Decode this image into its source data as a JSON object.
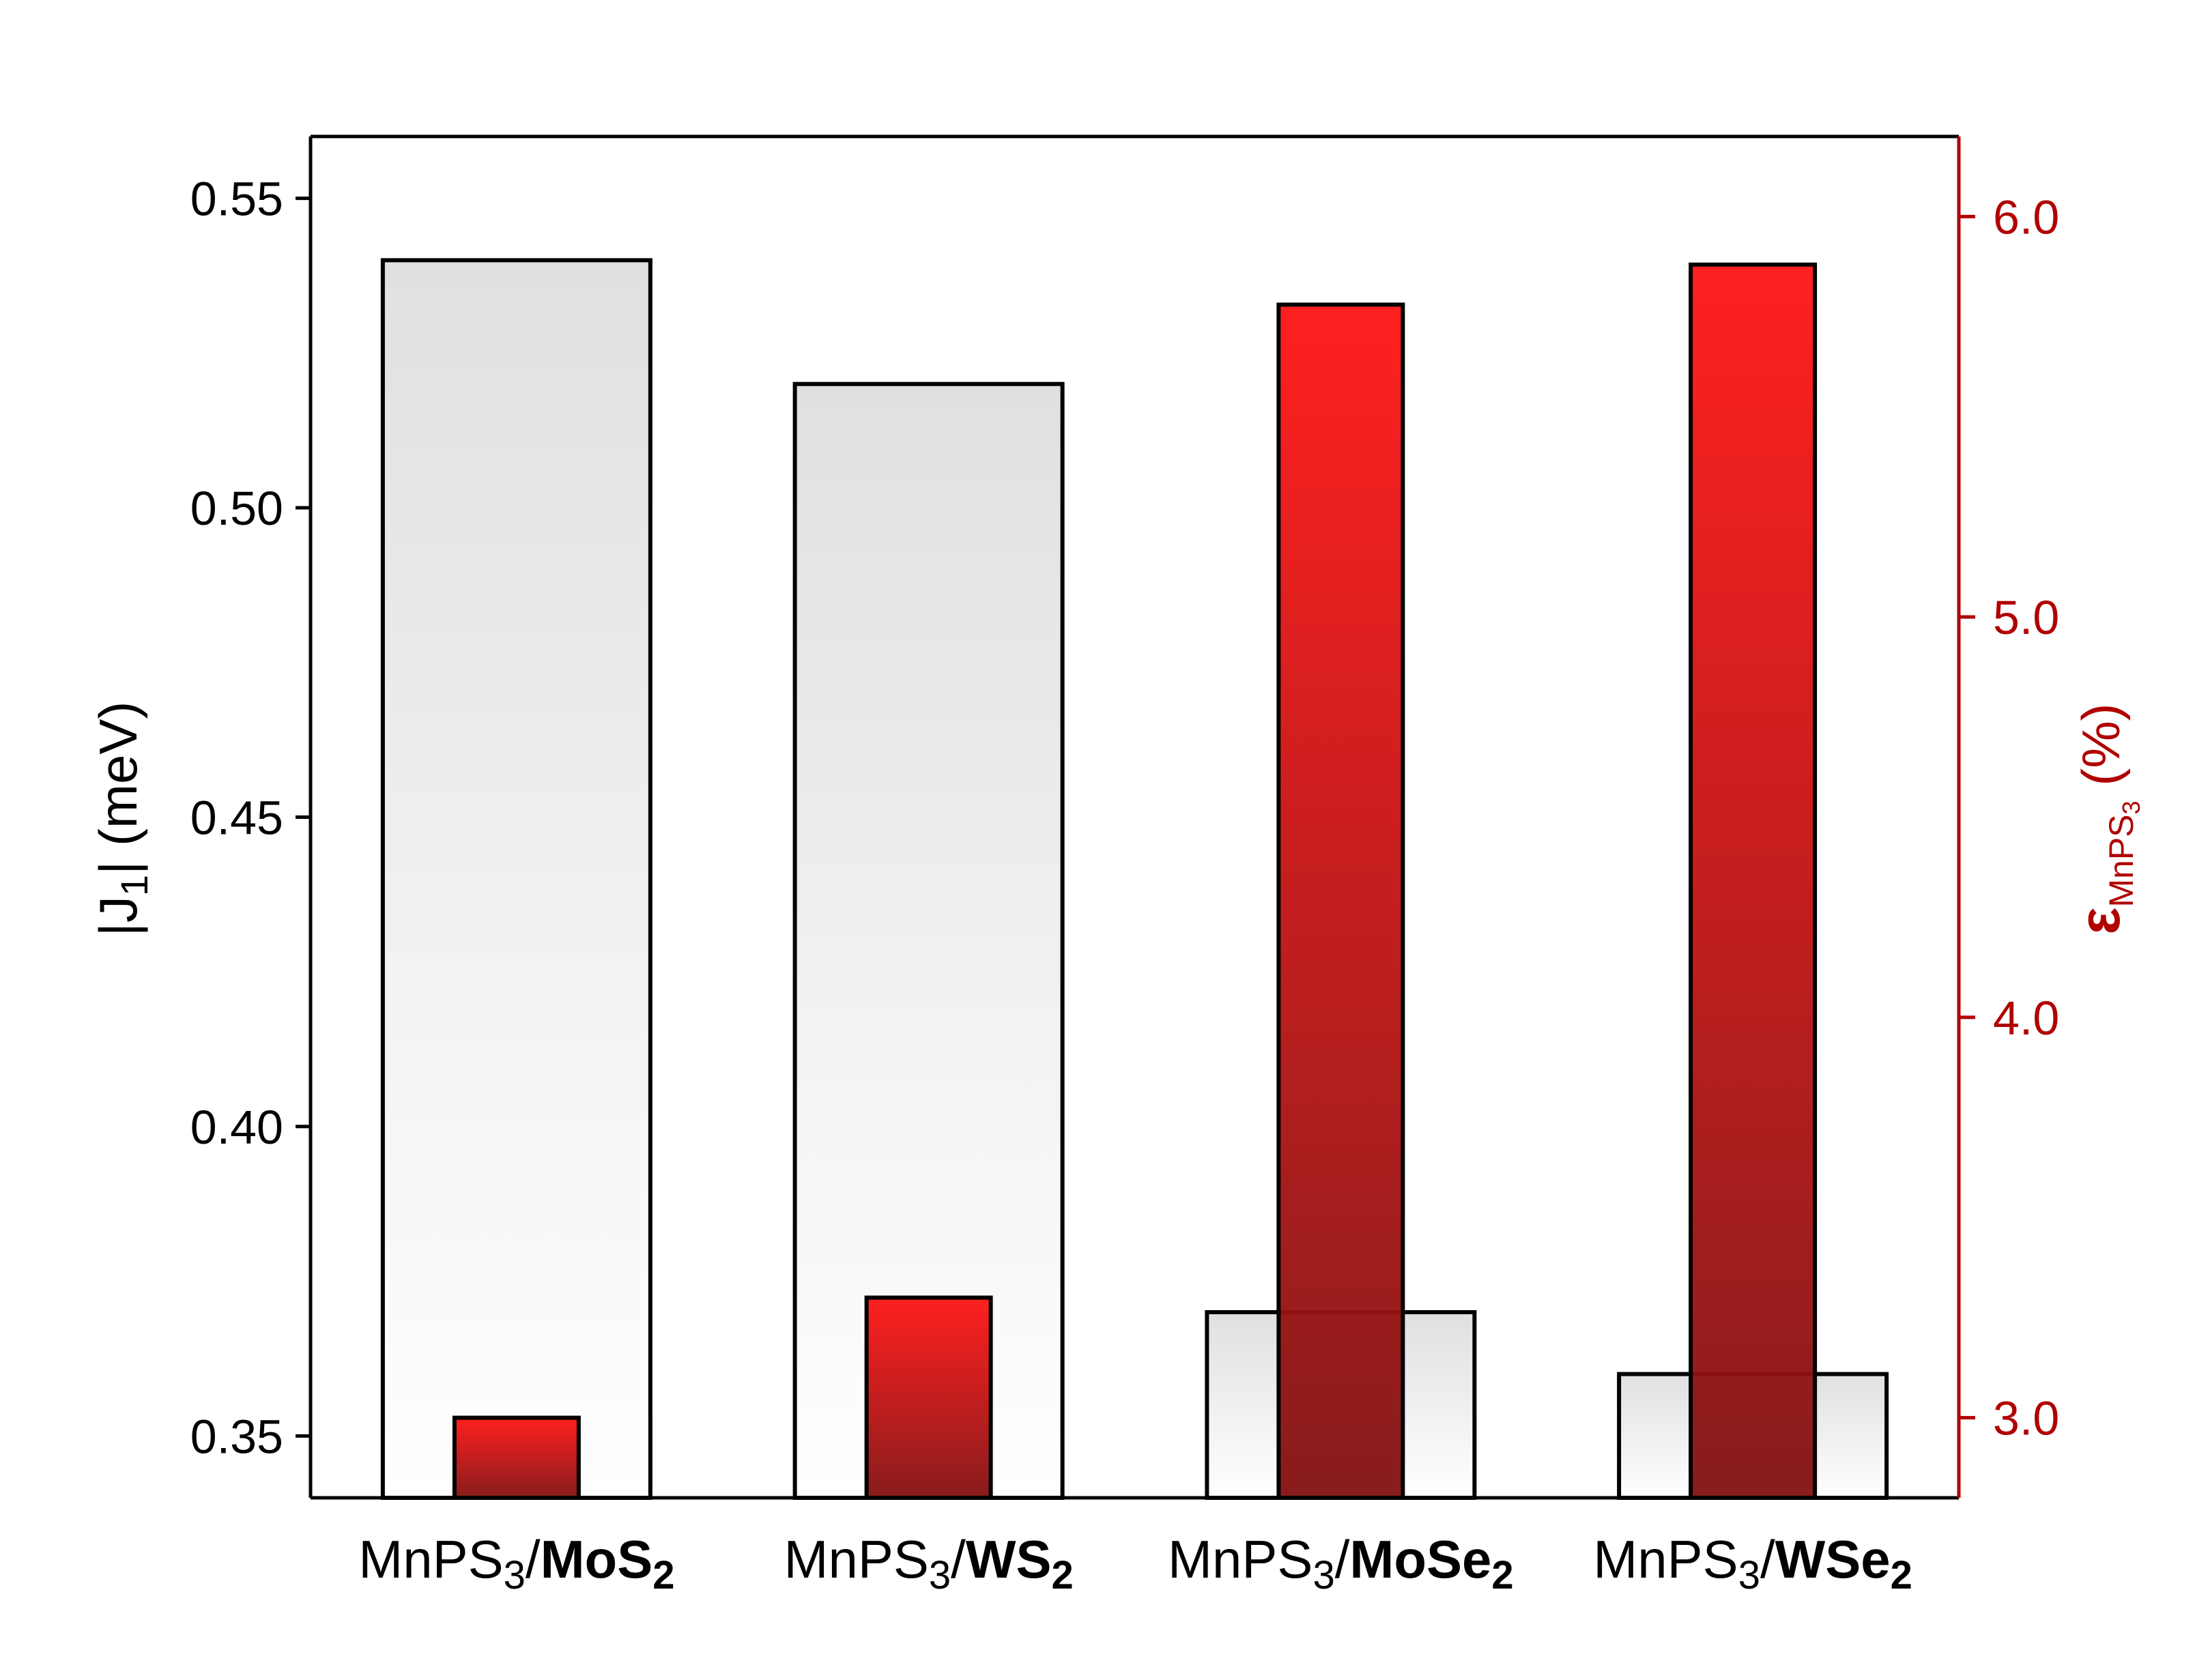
{
  "chart_data": {
    "type": "bar",
    "categories": [
      {
        "base": "MnPS",
        "base_sub": "3",
        "sep": "/",
        "bold": "MoS",
        "bold_sub": "2"
      },
      {
        "base": "MnPS",
        "base_sub": "3",
        "sep": "/",
        "bold": "WS",
        "bold_sub": "2"
      },
      {
        "base": "MnPS",
        "base_sub": "3",
        "sep": "/",
        "bold": "MoSe",
        "bold_sub": "2"
      },
      {
        "base": "MnPS",
        "base_sub": "3",
        "sep": "/",
        "bold": "WSe",
        "bold_sub": "2"
      }
    ],
    "series": [
      {
        "axis": "left",
        "values": [
          0.54,
          0.52,
          0.37,
          0.36
        ]
      },
      {
        "axis": "right",
        "values": [
          3.0,
          3.3,
          5.78,
          5.88
        ]
      }
    ],
    "left_axis": {
      "label_pre": "|J",
      "label_sub": "1",
      "label_post": "| (meV)",
      "ylim": [
        0.34,
        0.56
      ],
      "ticks": [
        0.35,
        0.4,
        0.45,
        0.5,
        0.55
      ],
      "tick_labels": [
        "0.35",
        "0.40",
        "0.45",
        "0.50",
        "0.55"
      ]
    },
    "right_axis": {
      "label_pre": "ε",
      "label_sub": "MnPS",
      "label_subsub": "3",
      "label_post": " (%)",
      "ylim": [
        2.8,
        6.2
      ],
      "ticks": [
        3.0,
        4.0,
        5.0,
        6.0
      ],
      "tick_labels": [
        "3.0",
        "4.0",
        "5.0",
        "6.0"
      ],
      "color": "#b00000"
    },
    "colors": {
      "gray_bar_top": "#e0e0e0",
      "gray_bar_bottom": "#ffffff",
      "red_bar_top": "#ff1414",
      "red_bar_bottom": "#821010",
      "right_axis": "#b00000"
    }
  }
}
